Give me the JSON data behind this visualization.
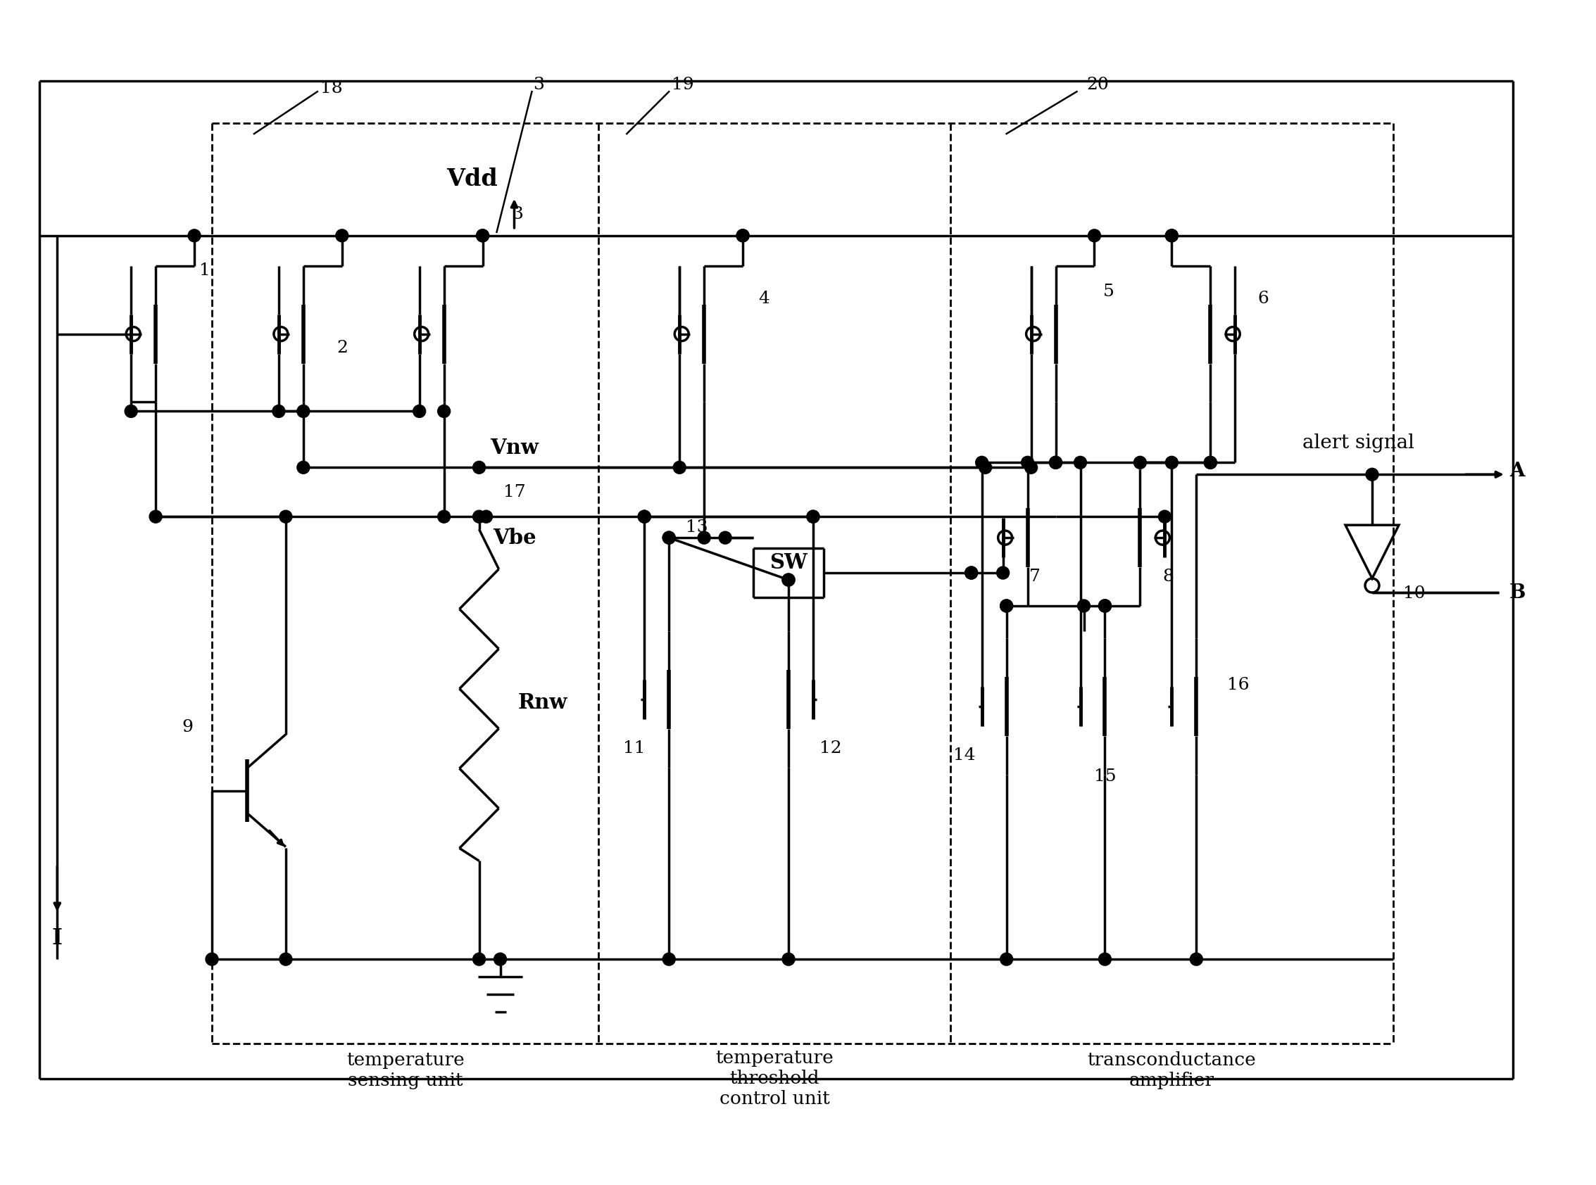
{
  "bg_color": "#ffffff",
  "lc": "#000000",
  "lw": 2.5,
  "dlw": 2.0,
  "labels": {
    "vdd": "Vdd",
    "vnw": "Vnw",
    "vbe": "Vbe",
    "rnw": "Rnw",
    "sw": "SW",
    "alert": "alert signal",
    "I": "I",
    "A": "A",
    "B": "B",
    "ts": "temperature\nsensing unit",
    "tc": "temperature\nthreshold\ncontrol unit",
    "ta": "transconductance\namplifier"
  },
  "fs_title": 22,
  "fs_label": 20,
  "fs_num": 18
}
